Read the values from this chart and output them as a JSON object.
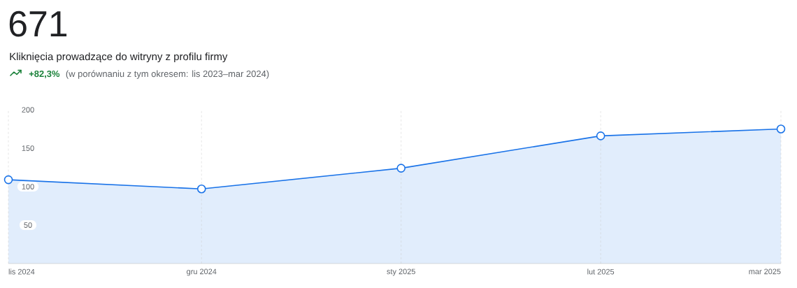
{
  "chart_data": {
    "type": "area",
    "title": "671",
    "subtitle": "Kliknięcia prowadzące do witryny z profilu firmy",
    "annotations": [
      "+82,3%",
      "(w porównaniu z tym okresem: lis 2023–mar 2024)"
    ],
    "x": [
      "2024-11",
      "2024-12",
      "2025-01",
      "2025-02",
      "2025-03"
    ],
    "values": [
      109,
      97,
      124,
      166,
      175
    ],
    "color": "#1a73e8",
    "xlim": [
      "2024-11",
      "2025-03"
    ],
    "xticks": [
      {
        "value": "2024-11",
        "label": "lis 2024"
      },
      {
        "value": "2024-12",
        "label": "gru 2024"
      },
      {
        "value": "2025-01",
        "label": "sty 2025"
      },
      {
        "value": "2025-02",
        "label": "lut 2025"
      },
      {
        "value": "2025-03",
        "label": "mar 2025"
      }
    ],
    "ylim": [
      0,
      200
    ],
    "yticks": [
      50,
      100,
      150,
      200
    ],
    "grid": "x",
    "marker": "circle",
    "line_style": "solid"
  }
}
